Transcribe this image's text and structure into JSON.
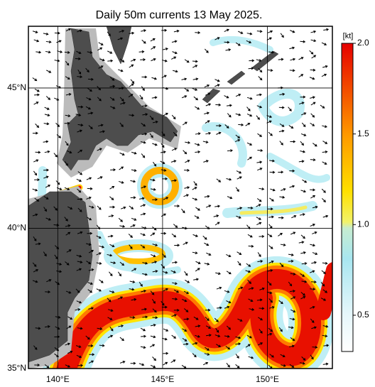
{
  "title": "Daily 50m currents 13 May 2025.",
  "map": {
    "xlim": [
      138.6,
      153.1
    ],
    "ylim": [
      35,
      47.2
    ],
    "xticks": [
      {
        "value": 140,
        "label": "140°E"
      },
      {
        "value": 145,
        "label": "145°E"
      },
      {
        "value": 150,
        "label": "150°E"
      }
    ],
    "yticks": [
      {
        "value": 35,
        "label": "35°N"
      },
      {
        "value": 40,
        "label": "40°N"
      },
      {
        "value": 45,
        "label": "45°N"
      }
    ],
    "grid": true
  },
  "colorbar": {
    "unit": "[kt]",
    "lim": [
      0.3,
      2.0
    ],
    "ticks": [
      0.5,
      {
        "value": 1,
        "label": "1.0"
      },
      1.5,
      {
        "value": 2,
        "label": "2.0"
      }
    ]
  }
}
